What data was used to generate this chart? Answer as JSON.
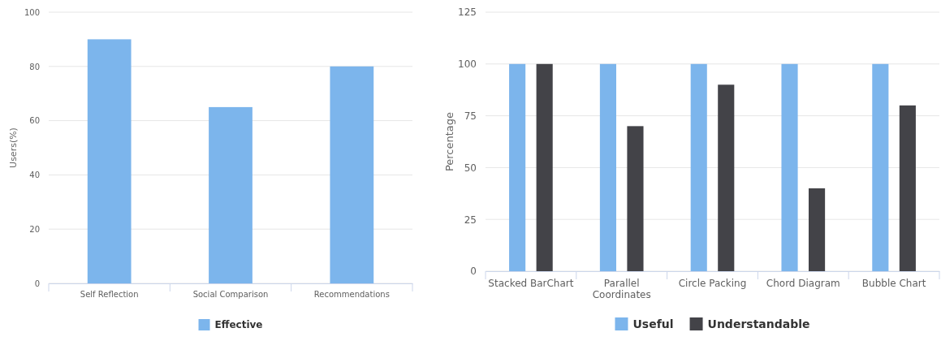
{
  "chart_data": [
    {
      "type": "bar",
      "ylabel": "Users(%)",
      "categories": [
        "Self Reflection",
        "Social Comparison",
        "Recommendations"
      ],
      "series": [
        {
          "name": "Effective",
          "color": "#7cb5ec",
          "values": [
            90,
            65,
            80
          ]
        }
      ],
      "ylim": [
        0,
        100
      ],
      "yticks": [
        0,
        20,
        40,
        60,
        80,
        100
      ],
      "grid": "y",
      "legend": "bottom"
    },
    {
      "type": "bar",
      "ylabel": "Percentage",
      "categories": [
        "Stacked BarChart",
        "Parallel Coordinates",
        "Circle Packing",
        "Chord Diagram",
        "Bubble Chart"
      ],
      "series": [
        {
          "name": "Useful",
          "color": "#7cb5ec",
          "values": [
            100,
            100,
            100,
            100,
            100
          ]
        },
        {
          "name": "Understandable",
          "color": "#434348",
          "values": [
            100,
            70,
            90,
            40,
            80
          ]
        }
      ],
      "ylim": [
        0,
        125
      ],
      "yticks": [
        0,
        25,
        50,
        75,
        100,
        125
      ],
      "grid": "y",
      "legend": "bottom"
    }
  ]
}
